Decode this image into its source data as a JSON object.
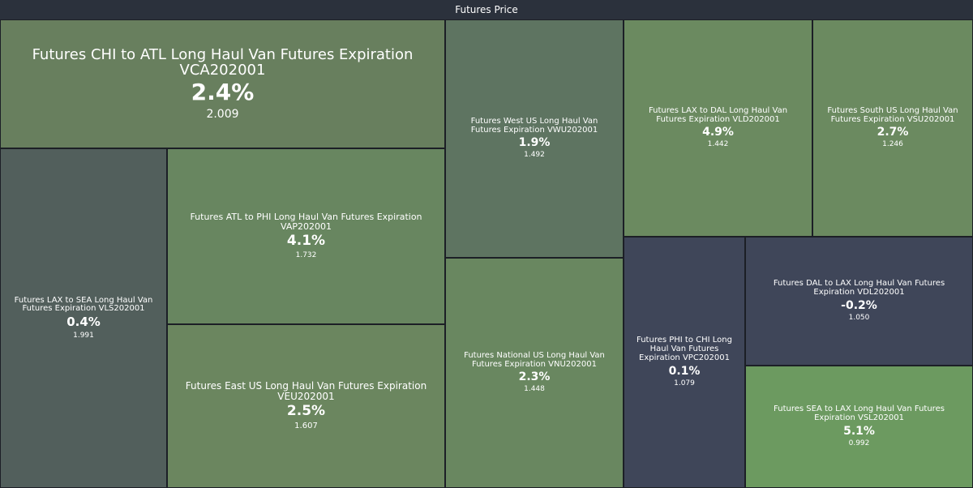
{
  "header": {
    "title": "Futures Price"
  },
  "chart_data": {
    "type": "treemap",
    "title": "Futures Price",
    "items": [
      {
        "name": "Futures CHI to ATL Long Haul Van Futures Expiration VCA202001",
        "change": "2.4%",
        "price": "2.009",
        "color": "#687f5e"
      },
      {
        "name": "Futures LAX to SEA Long Haul Van Futures Expiration VLS202001",
        "change": "0.4%",
        "price": "1.991",
        "color": "#525f5c"
      },
      {
        "name": "Futures ATL to PHI Long Haul Van Futures Expiration VAP202001",
        "change": "4.1%",
        "price": "1.732",
        "color": "#688660"
      },
      {
        "name": "Futures East US Long Haul Van Futures Expiration VEU202001",
        "change": "2.5%",
        "price": "1.607",
        "color": "#6b865f"
      },
      {
        "name": "Futures West US Long Haul Van Futures Expiration VWU202001",
        "change": "1.9%",
        "price": "1.492",
        "color": "#5e7461"
      },
      {
        "name": "Futures National US Long Haul Van Futures Expiration VNU202001",
        "change": "2.3%",
        "price": "1.448",
        "color": "#698760"
      },
      {
        "name": "Futures LAX to DAL Long Haul Van Futures Expiration VLD202001",
        "change": "4.9%",
        "price": "1.442",
        "color": "#6b8a60"
      },
      {
        "name": "Futures South US Long Haul Van Futures Expiration VSU202001",
        "change": "2.7%",
        "price": "1.246",
        "color": "#6b8a60"
      },
      {
        "name": "Futures PHI to CHI Long Haul Van Futures Expiration VPC202001",
        "change": "0.1%",
        "price": "1.079",
        "color": "#3f4659"
      },
      {
        "name": "Futures DAL to LAX Long Haul Van Futures Expiration VDL202001",
        "change": "-0.2%",
        "price": "1.050",
        "color": "#3f4659"
      },
      {
        "name": "Futures SEA to LAX Long Haul Van Futures Expiration VSL202001",
        "change": "5.1%",
        "price": "0.992",
        "color": "#6c9a60"
      }
    ]
  }
}
